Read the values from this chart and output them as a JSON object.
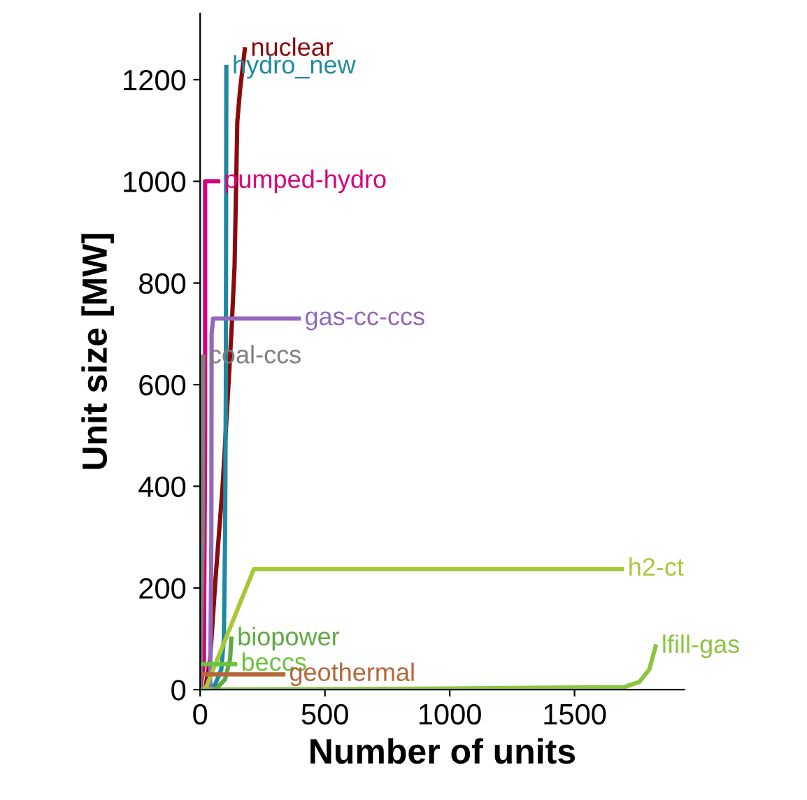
{
  "chart_data": {
    "type": "line",
    "xlabel": "Number of units",
    "ylabel": "Unit size [MW]",
    "xlim": [
      0,
      1940
    ],
    "ylim": [
      0,
      1330
    ],
    "xticks": [
      0,
      500,
      1000,
      1500
    ],
    "yticks": [
      0,
      200,
      400,
      600,
      800,
      1000,
      1200
    ],
    "grid": false,
    "legend": false,
    "series": [
      {
        "name": "nuclear",
        "color": "#8b0a0a",
        "x": [
          20,
          40,
          62,
          90,
          113,
          125,
          138,
          149,
          160,
          179
        ],
        "values": [
          0,
          60,
          220,
          400,
          594,
          700,
          833,
          1117,
          1180,
          1260
        ]
      },
      {
        "name": "hydro_new",
        "color": "#1f8a9f",
        "x": [
          30,
          60,
          85,
          95,
          100,
          103,
          105
        ],
        "values": [
          0,
          10,
          40,
          100,
          300,
          600,
          1225
        ]
      },
      {
        "name": "pumped-hydro",
        "color": "#d6007e",
        "x": [
          0,
          15,
          20,
          20,
          72
        ],
        "values": [
          0,
          50,
          500,
          1000,
          1000
        ]
      },
      {
        "name": "gas-cc-ccs",
        "color": "#9467bd",
        "x": [
          40,
          45,
          46,
          52,
          395
        ],
        "values": [
          0,
          300,
          700,
          730,
          730
        ]
      },
      {
        "name": "coal-ccs",
        "color": "#7f7f7f",
        "x": [
          0,
          10,
          12
        ],
        "values": [
          0,
          300,
          655
        ]
      },
      {
        "name": "h2-ct",
        "color": "#a8c83a",
        "x": [
          20,
          215,
          1690
        ],
        "values": [
          0,
          237,
          237
        ]
      },
      {
        "name": "lfill-gas",
        "color": "#8cc540",
        "x": [
          0,
          1000,
          1700,
          1760,
          1800,
          1825
        ],
        "values": [
          0,
          2,
          5,
          15,
          40,
          85
        ]
      },
      {
        "name": "biopower",
        "color": "#5fa843",
        "x": [
          60,
          100,
          120,
          125
        ],
        "values": [
          0,
          20,
          60,
          100
        ]
      },
      {
        "name": "beccs",
        "color": "#6cc23a",
        "x": [
          0,
          140
        ],
        "values": [
          50,
          50
        ]
      },
      {
        "name": "geothermal",
        "color": "#b5673a",
        "x": [
          0,
          333
        ],
        "values": [
          30,
          30
        ]
      }
    ]
  }
}
